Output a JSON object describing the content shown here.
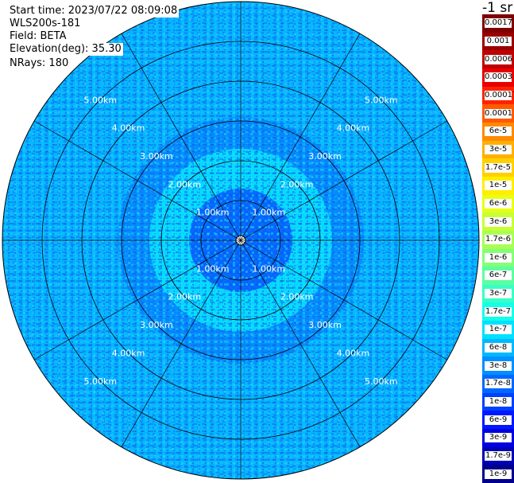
{
  "header": {
    "start_time": "Start time: 2023/07/22 08:09:08",
    "instrument": "WLS200s-181",
    "field": "Field: BETA",
    "elevation": "Elevation(deg): 35.30",
    "nrays": "NRays: 180"
  },
  "colorbar": {
    "unit": "-1 sr",
    "labels": [
      "0.0017",
      "0.001",
      "0.0006",
      "0.0003",
      "0.00017",
      "0.0001",
      "6e-5",
      "3e-5",
      "1.7e-5",
      "1e-5",
      "6e-6",
      "3e-6",
      "1.7e-6",
      "1e-6",
      "6e-7",
      "3e-7",
      "1.7e-7",
      "1e-7",
      "6e-8",
      "3e-8",
      "1.7e-8",
      "1e-8",
      "6e-9",
      "3e-9",
      "1.7e-9",
      "1e-9"
    ],
    "colors": [
      "#7f0000",
      "#9a0000",
      "#c00000",
      "#e80000",
      "#ff2200",
      "#ff5a00",
      "#ff8a00",
      "#ffb000",
      "#ffd000",
      "#ffee00",
      "#e8ff14",
      "#c8ff34",
      "#a8ff54",
      "#84ff78",
      "#5cffa0",
      "#38ffc4",
      "#14ffe8",
      "#00e0ff",
      "#00b8ff",
      "#0090ff",
      "#0068ff",
      "#0040ff",
      "#0018ff",
      "#0000e0",
      "#0000b4",
      "#00008c"
    ]
  },
  "chart_data": {
    "type": "heatmap",
    "projection": "polar (PPI)",
    "field": "BETA",
    "range_rings_km": [
      1,
      2,
      3,
      4,
      5
    ],
    "range_labels": [
      "1.00km",
      "2.00km",
      "3.00km",
      "4.00km",
      "5.00km"
    ],
    "azimuth_spokes_deg": [
      0,
      30,
      60,
      90,
      120,
      150,
      180,
      210,
      240,
      270,
      300,
      330
    ],
    "max_range_km": 6.0,
    "color_scale": "log",
    "value_range": [
      1e-09,
      0.0017
    ],
    "zones": [
      {
        "from_km": 0.0,
        "to_km": 1.3,
        "beta": 1.7e-08
      },
      {
        "from_km": 1.3,
        "to_km": 2.3,
        "beta": 1e-07
      },
      {
        "from_km": 2.3,
        "to_km": 3.1,
        "beta": 3e-08
      },
      {
        "from_km": 3.1,
        "to_km": 6.0,
        "beta": 6e-08
      }
    ]
  }
}
